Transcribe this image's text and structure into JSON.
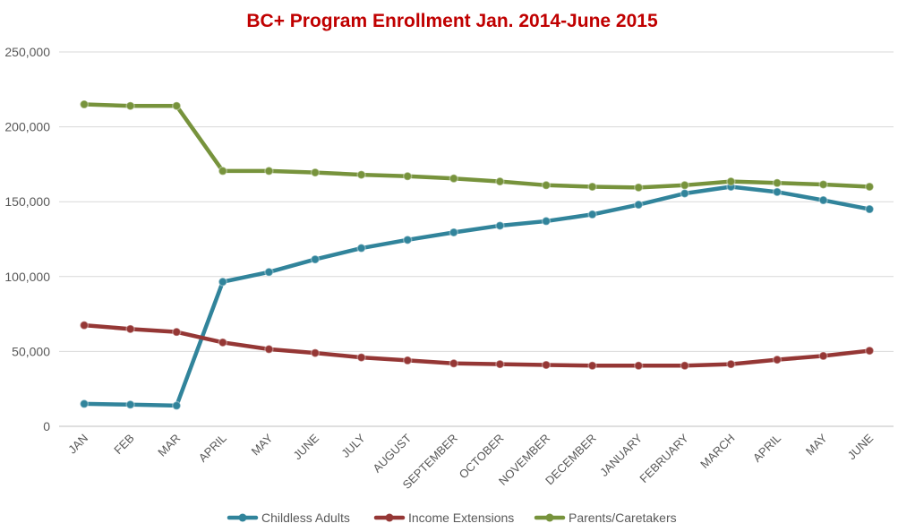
{
  "chart_data": {
    "type": "line",
    "title": "BC+ Program Enrollment Jan. 2014-June 2015",
    "title_color": "#C00000",
    "xlabel": "",
    "ylabel": "",
    "ylim": [
      0,
      250000
    ],
    "y_ticks": [
      0,
      50000,
      100000,
      150000,
      200000,
      250000
    ],
    "y_tick_labels": [
      "0",
      "50,000",
      "100,000",
      "150,000",
      "200,000",
      "250,000"
    ],
    "grid": true,
    "legend_position": "bottom",
    "categories": [
      "JAN",
      "FEB",
      "MAR",
      "APRIL",
      "MAY",
      "JUNE",
      "JULY",
      "AUGUST",
      "SEPTEMBER",
      "OCTOBER",
      "NOVEMBER",
      "DECEMBER",
      "JANUARY",
      "FEBRUARY",
      "MARCH",
      "APRIL",
      "MAY",
      "JUNE"
    ],
    "series": [
      {
        "name": "Childless Adults",
        "color": "#31849B",
        "values": [
          15000,
          14500,
          13800,
          96500,
          103000,
          111500,
          119000,
          124500,
          129500,
          134000,
          137000,
          141500,
          148000,
          155500,
          160000,
          156500,
          151000,
          145000
        ]
      },
      {
        "name": "Income Extensions",
        "color": "#953735",
        "values": [
          67500,
          65000,
          63000,
          56000,
          51500,
          49000,
          46000,
          44000,
          42000,
          41500,
          41000,
          40500,
          40500,
          40500,
          41500,
          44500,
          47000,
          50500
        ]
      },
      {
        "name": "Parents/Caretakers",
        "color": "#77933C",
        "values": [
          215000,
          214000,
          214000,
          170500,
          170500,
          169500,
          168000,
          167000,
          165500,
          163500,
          161000,
          160000,
          159500,
          161000,
          163500,
          162500,
          161500,
          160000
        ]
      }
    ]
  }
}
